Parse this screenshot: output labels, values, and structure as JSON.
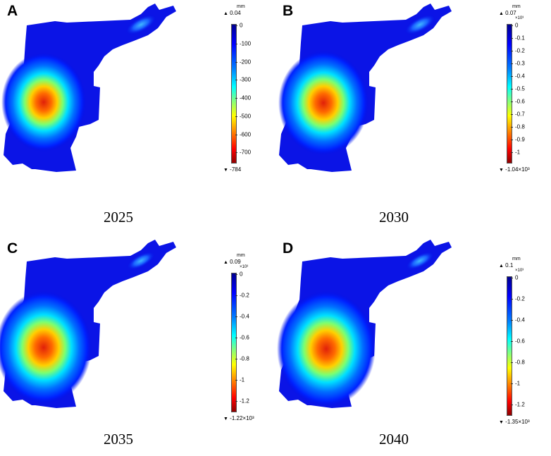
{
  "unit": "mm",
  "panels": [
    {
      "letter": "A",
      "year": "2025",
      "max_label": "0.04",
      "multiplier": "",
      "ticks": [
        "0",
        "-100",
        "-200",
        "-300",
        "-400",
        "-500",
        "-600",
        "-700"
      ],
      "min_label": "-784"
    },
    {
      "letter": "B",
      "year": "2030",
      "max_label": "0.07",
      "multiplier": "×10³",
      "ticks": [
        "0",
        "-0.1",
        "-0.2",
        "-0.3",
        "-0.4",
        "-0.5",
        "-0.6",
        "-0.7",
        "-0.8",
        "-0.9",
        "-1"
      ],
      "min_label": "-1.04×10³"
    },
    {
      "letter": "C",
      "year": "2035",
      "max_label": "0.09",
      "multiplier": "×10³",
      "ticks": [
        "0",
        "-0.2",
        "-0.4",
        "-0.6",
        "-0.8",
        "-1",
        "-1.2"
      ],
      "min_label": "-1.22×10³"
    },
    {
      "letter": "D",
      "year": "2040",
      "max_label": "0.1",
      "multiplier": "×10³",
      "ticks": [
        "0",
        "-0.2",
        "-0.4",
        "-0.6",
        "-0.8",
        "-1",
        "-1.2"
      ],
      "min_label": "-1.35×10³"
    }
  ],
  "colors": {
    "scale_top": "#00008f",
    "scale_bottom": "#8f0000",
    "hotspot": "#ff2000"
  }
}
